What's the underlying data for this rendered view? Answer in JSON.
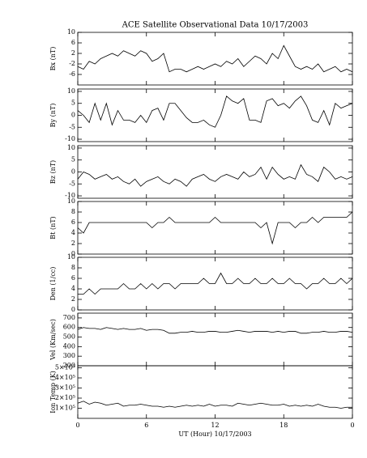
{
  "chart_data": [
    {
      "type": "line",
      "title": "ACE Satellite Observational Data   10/17/2003",
      "ylabel": "Bx (nT)",
      "color": "#000000",
      "xlim": [
        0,
        24
      ],
      "xticks": [
        0,
        6,
        12,
        18,
        24
      ],
      "ylim": [
        -10,
        10
      ],
      "yticks": [
        -6,
        -2,
        2,
        6,
        10
      ],
      "x": [
        0,
        0.5,
        1,
        1.5,
        2,
        2.5,
        3,
        3.5,
        4,
        4.5,
        5,
        5.5,
        6,
        6.5,
        7,
        7.5,
        8,
        8.5,
        9,
        9.5,
        10,
        10.5,
        11,
        11.5,
        12,
        12.5,
        13,
        13.5,
        14,
        14.5,
        15,
        15.5,
        16,
        16.5,
        17,
        17.5,
        18,
        18.5,
        19,
        19.5,
        20,
        20.5,
        21,
        21.5,
        22,
        22.5,
        23,
        23.5,
        24
      ],
      "values": [
        -3,
        -4,
        -1,
        -2,
        0,
        1,
        2,
        1,
        3,
        2,
        1,
        3,
        2,
        -1,
        0,
        2,
        -5,
        -4,
        -4,
        -5,
        -4,
        -3,
        -4,
        -3,
        -2,
        -3,
        -1,
        -2,
        0,
        -3,
        -1,
        1,
        0,
        -2,
        2,
        0,
        5,
        1,
        -3,
        -4,
        -3,
        -4,
        -2,
        -5,
        -4,
        -3,
        -5,
        -4,
        -5
      ]
    },
    {
      "type": "line",
      "ylabel": "By (nT)",
      "color": "#000000",
      "xlim": [
        0,
        24
      ],
      "xticks": [
        0,
        6,
        12,
        18,
        24
      ],
      "ylim": [
        -11,
        11
      ],
      "yticks": [
        -10,
        -5,
        0,
        5,
        10
      ],
      "x": [
        0,
        0.5,
        1,
        1.5,
        2,
        2.5,
        3,
        3.5,
        4,
        4.5,
        5,
        5.5,
        6,
        6.5,
        7,
        7.5,
        8,
        8.5,
        9,
        9.5,
        10,
        10.5,
        11,
        11.5,
        12,
        12.5,
        13,
        13.5,
        14,
        14.5,
        15,
        15.5,
        16,
        16.5,
        17,
        17.5,
        18,
        18.5,
        19,
        19.5,
        20,
        20.5,
        21,
        21.5,
        22,
        22.5,
        23,
        23.5,
        24
      ],
      "values": [
        2,
        0,
        -3,
        5,
        -2,
        5,
        -4,
        2,
        -2,
        -2,
        -3,
        0,
        -3,
        2,
        3,
        -2,
        5,
        5,
        2,
        -1,
        -3,
        -3,
        -2,
        -4,
        -5,
        0,
        8,
        6,
        5,
        7,
        -2,
        -2,
        -3,
        6,
        7,
        4,
        5,
        3,
        6,
        8,
        4,
        -2,
        -3,
        2,
        -4,
        5,
        3,
        4,
        5
      ]
    },
    {
      "type": "line",
      "ylabel": "Bz (nT)",
      "color": "#000000",
      "xlim": [
        0,
        24
      ],
      "xticks": [
        0,
        6,
        12,
        18,
        24
      ],
      "ylim": [
        -11,
        11
      ],
      "yticks": [
        -10,
        -5,
        0,
        5,
        10
      ],
      "x": [
        0,
        0.5,
        1,
        1.5,
        2,
        2.5,
        3,
        3.5,
        4,
        4.5,
        5,
        5.5,
        6,
        6.5,
        7,
        7.5,
        8,
        8.5,
        9,
        9.5,
        10,
        10.5,
        11,
        11.5,
        12,
        12.5,
        13,
        13.5,
        14,
        14.5,
        15,
        15.5,
        16,
        16.5,
        17,
        17.5,
        18,
        18.5,
        19,
        19.5,
        20,
        20.5,
        21,
        21.5,
        22,
        22.5,
        23,
        23.5,
        24
      ],
      "values": [
        -3,
        0,
        -1,
        -3,
        -2,
        -1,
        -3,
        -2,
        -4,
        -5,
        -3,
        -6,
        -4,
        -3,
        -2,
        -4,
        -5,
        -3,
        -4,
        -6,
        -3,
        -2,
        -1,
        -3,
        -4,
        -2,
        -1,
        -2,
        -3,
        0,
        -2,
        -1,
        2,
        -3,
        2,
        -1,
        -3,
        -2,
        -3,
        3,
        -1,
        -2,
        -4,
        2,
        0,
        -3,
        -2,
        -3,
        -2
      ]
    },
    {
      "type": "line",
      "ylabel": "Bt (nT)",
      "color": "#000000",
      "xlim": [
        0,
        24
      ],
      "xticks": [
        0,
        6,
        12,
        18,
        24
      ],
      "ylim": [
        0,
        10
      ],
      "yticks": [
        0,
        2,
        4,
        6,
        8,
        10
      ],
      "x": [
        0,
        0.5,
        1,
        1.5,
        2,
        2.5,
        3,
        3.5,
        4,
        4.5,
        5,
        5.5,
        6,
        6.5,
        7,
        7.5,
        8,
        8.5,
        9,
        9.5,
        10,
        10.5,
        11,
        11.5,
        12,
        12.5,
        13,
        13.5,
        14,
        14.5,
        15,
        15.5,
        16,
        16.5,
        17,
        17.5,
        18,
        18.5,
        19,
        19.5,
        20,
        20.5,
        21,
        21.5,
        22,
        22.5,
        23,
        23.5,
        24
      ],
      "values": [
        5,
        4,
        6,
        6,
        6,
        6,
        6,
        6,
        6,
        6,
        6,
        6,
        6,
        5,
        6,
        6,
        7,
        6,
        6,
        6,
        6,
        6,
        6,
        6,
        7,
        6,
        6,
        6,
        6,
        6,
        6,
        6,
        5,
        6,
        2,
        6,
        6,
        6,
        5,
        6,
        6,
        7,
        6,
        7,
        7,
        7,
        7,
        7,
        8
      ]
    },
    {
      "type": "line",
      "ylabel": "Den (1/cc)",
      "color": "#000000",
      "xlim": [
        0,
        24
      ],
      "xticks": [
        0,
        6,
        12,
        18,
        24
      ],
      "ylim": [
        0,
        10
      ],
      "yticks": [
        0,
        2,
        4,
        6,
        8,
        10
      ],
      "x": [
        0,
        0.5,
        1,
        1.5,
        2,
        2.5,
        3,
        3.5,
        4,
        4.5,
        5,
        5.5,
        6,
        6.5,
        7,
        7.5,
        8,
        8.5,
        9,
        9.5,
        10,
        10.5,
        11,
        11.5,
        12,
        12.5,
        13,
        13.5,
        14,
        14.5,
        15,
        15.5,
        16,
        16.5,
        17,
        17.5,
        18,
        18.5,
        19,
        19.5,
        20,
        20.5,
        21,
        21.5,
        22,
        22.5,
        23,
        23.5,
        24
      ],
      "values": [
        3,
        3,
        4,
        3,
        4,
        4,
        4,
        4,
        5,
        4,
        4,
        5,
        4,
        5,
        4,
        5,
        5,
        4,
        5,
        5,
        5,
        5,
        6,
        5,
        5,
        7,
        5,
        5,
        6,
        5,
        5,
        6,
        5,
        5,
        6,
        5,
        5,
        6,
        5,
        5,
        4,
        5,
        5,
        6,
        5,
        5,
        6,
        5,
        6
      ]
    },
    {
      "type": "line",
      "ylabel": "Vel (Km/sec)",
      "color": "#000000",
      "xlim": [
        0,
        24
      ],
      "xticks": [
        0,
        6,
        12,
        18,
        24
      ],
      "ylim": [
        200,
        750
      ],
      "yticks": [
        200,
        300,
        400,
        500,
        600,
        700
      ],
      "x": [
        0,
        0.5,
        1,
        1.5,
        2,
        2.5,
        3,
        3.5,
        4,
        4.5,
        5,
        5.5,
        6,
        6.5,
        7,
        7.5,
        8,
        8.5,
        9,
        9.5,
        10,
        10.5,
        11,
        11.5,
        12,
        12.5,
        13,
        13.5,
        14,
        14.5,
        15,
        15.5,
        16,
        16.5,
        17,
        17.5,
        18,
        18.5,
        19,
        19.5,
        20,
        20.5,
        21,
        21.5,
        22,
        22.5,
        23,
        23.5,
        24
      ],
      "values": [
        580,
        600,
        590,
        590,
        580,
        600,
        590,
        580,
        590,
        580,
        580,
        590,
        570,
        580,
        580,
        570,
        540,
        540,
        550,
        550,
        560,
        550,
        550,
        560,
        560,
        550,
        550,
        560,
        570,
        560,
        550,
        560,
        560,
        560,
        550,
        560,
        550,
        560,
        560,
        540,
        540,
        550,
        550,
        560,
        550,
        550,
        560,
        560,
        550
      ]
    },
    {
      "type": "line",
      "ylabel": "Ion Temp (K)",
      "xlabel": "UT (Hour)   10/17/2003",
      "color": "#000000",
      "xlim": [
        0,
        24
      ],
      "xticks": [
        0,
        6,
        12,
        18,
        {
          "value": 24,
          "label": "0"
        }
      ],
      "ylim": [
        0,
        520000
      ],
      "yticks": [
        {
          "value": 100000,
          "label": "1×10⁵"
        },
        {
          "value": 200000,
          "label": "2×10⁵"
        },
        {
          "value": 300000,
          "label": "3×10⁵"
        },
        {
          "value": 400000,
          "label": "4×10⁵"
        },
        {
          "value": 500000,
          "label": "5×10⁵"
        }
      ],
      "x": [
        0,
        0.5,
        1,
        1.5,
        2,
        2.5,
        3,
        3.5,
        4,
        4.5,
        5,
        5.5,
        6,
        6.5,
        7,
        7.5,
        8,
        8.5,
        9,
        9.5,
        10,
        10.5,
        11,
        11.5,
        12,
        12.5,
        13,
        13.5,
        14,
        14.5,
        15,
        15.5,
        16,
        16.5,
        17,
        17.5,
        18,
        18.5,
        19,
        19.5,
        20,
        20.5,
        21,
        21.5,
        22,
        22.5,
        23,
        23.5,
        24
      ],
      "values": [
        150000,
        170000,
        140000,
        160000,
        150000,
        130000,
        140000,
        150000,
        120000,
        130000,
        130000,
        140000,
        130000,
        120000,
        120000,
        110000,
        120000,
        110000,
        120000,
        130000,
        120000,
        130000,
        120000,
        140000,
        120000,
        130000,
        130000,
        120000,
        150000,
        140000,
        130000,
        140000,
        150000,
        140000,
        130000,
        130000,
        140000,
        120000,
        130000,
        120000,
        130000,
        120000,
        140000,
        120000,
        110000,
        110000,
        100000,
        110000,
        110000
      ]
    }
  ]
}
